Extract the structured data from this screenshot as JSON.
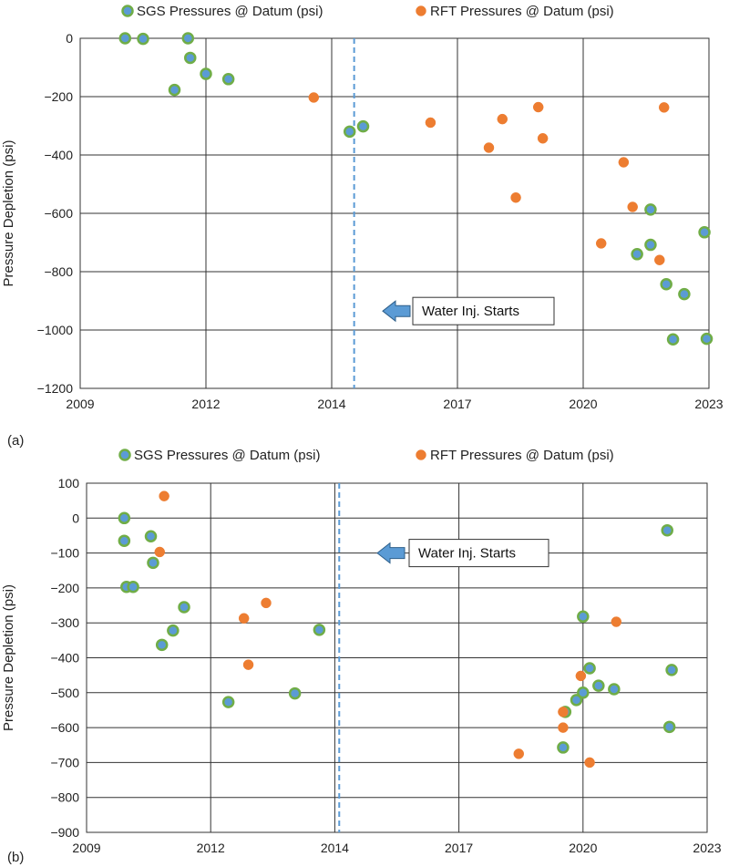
{
  "colors": {
    "sgs_fill": "#5b9bd5",
    "sgs_edge": "#70ad47",
    "rft_fill": "#ed7d31",
    "grid": "#333333",
    "marker_line": "#5b9bd5",
    "arrow_fill": "#5b9bd5",
    "arrow_edge": "#2e5f8a"
  },
  "chart_data": [
    {
      "panel": "(a)",
      "type": "scatter",
      "ylabel": "Pressure Depletion (psi)",
      "xlabel": "",
      "x_ticks": [
        "2009",
        "2012",
        "2014",
        "2017",
        "2020",
        "2023"
      ],
      "xlim": [
        2009,
        2023
      ],
      "ylim": [
        -1200,
        0
      ],
      "y_ticks": [
        0,
        -200,
        -400,
        -600,
        -800,
        -1000,
        -1200
      ],
      "y_tick_labels": [
        "0",
        "−200",
        "−400",
        "−600",
        "−800",
        "−1000",
        "−1200"
      ],
      "grid": true,
      "legend": "top",
      "vline_x": 2015.1,
      "annotation": {
        "text": "Water Inj. Starts",
        "y": -935
      },
      "series": [
        {
          "name": "SGS Pressures @ Datum (psi)",
          "marker": "sgs",
          "points": [
            [
              2010.0,
              0
            ],
            [
              2010.4,
              -2
            ],
            [
              2011.4,
              0
            ],
            [
              2011.45,
              -67
            ],
            [
              2011.1,
              -177
            ],
            [
              2011.8,
              -122
            ],
            [
              2012.3,
              -140
            ],
            [
              2015.0,
              -320
            ],
            [
              2015.3,
              -302
            ],
            [
              2021.7,
              -587
            ],
            [
              2021.4,
              -740
            ],
            [
              2021.7,
              -708
            ],
            [
              2022.05,
              -843
            ],
            [
              2022.45,
              -877
            ],
            [
              2022.2,
              -1032
            ],
            [
              2022.9,
              -665
            ],
            [
              2022.95,
              -1030
            ]
          ]
        },
        {
          "name": "RFT Pressures @ Datum (psi)",
          "marker": "rft",
          "points": [
            [
              2014.2,
              -203
            ],
            [
              2016.8,
              -289
            ],
            [
              2018.1,
              -375
            ],
            [
              2018.4,
              -277
            ],
            [
              2019.2,
              -236
            ],
            [
              2019.3,
              -343
            ],
            [
              2018.7,
              -546
            ],
            [
              2021.1,
              -425
            ],
            [
              2021.3,
              -578
            ],
            [
              2022.0,
              -237
            ],
            [
              2020.6,
              -703
            ],
            [
              2021.9,
              -760
            ]
          ]
        }
      ]
    },
    {
      "panel": "(b)",
      "type": "scatter",
      "ylabel": "Pressure Depletion (psi)",
      "xlabel": "",
      "x_ticks": [
        "2009",
        "2012",
        "2014",
        "2017",
        "2020",
        "2023"
      ],
      "xlim": [
        2009,
        2023
      ],
      "ylim": [
        -900,
        100
      ],
      "y_ticks": [
        100,
        0,
        -100,
        -200,
        -300,
        -400,
        -500,
        -600,
        -700,
        -800,
        -900
      ],
      "y_tick_labels": [
        "100",
        "0",
        "−100",
        "−200",
        "−300",
        "−400",
        "−500",
        "−600",
        "−700",
        "−800",
        "−900"
      ],
      "grid": true,
      "legend": "top",
      "vline_x": 2014.7,
      "annotation": {
        "text": "Water Inj. Starts",
        "y": -100
      },
      "series": [
        {
          "name": "SGS Pressures @ Datum (psi)",
          "marker": "sgs",
          "points": [
            [
              2009.85,
              0
            ],
            [
              2009.85,
              -65
            ],
            [
              2009.9,
              -197
            ],
            [
              2010.05,
              -197
            ],
            [
              2010.45,
              -52
            ],
            [
              2010.5,
              -128
            ],
            [
              2011.2,
              -255
            ],
            [
              2010.95,
              -322
            ],
            [
              2010.7,
              -363
            ],
            [
              2012.2,
              -527
            ],
            [
              2013.7,
              -502
            ],
            [
              2014.25,
              -320
            ],
            [
              2020.2,
              -282
            ],
            [
              2019.8,
              -555
            ],
            [
              2019.75,
              -657
            ],
            [
              2020.05,
              -521
            ],
            [
              2020.2,
              -500
            ],
            [
              2020.35,
              -430
            ],
            [
              2020.55,
              -480
            ],
            [
              2020.9,
              -490
            ],
            [
              2022.1,
              -35
            ],
            [
              2022.2,
              -435
            ],
            [
              2022.15,
              -598
            ]
          ]
        },
        {
          "name": "RFT Pressures @ Datum (psi)",
          "marker": "rft",
          "points": [
            [
              2010.75,
              63
            ],
            [
              2010.65,
              -97
            ],
            [
              2012.55,
              -287
            ],
            [
              2012.65,
              -420
            ],
            [
              2013.05,
              -243
            ],
            [
              2018.75,
              -675
            ],
            [
              2019.75,
              -555
            ],
            [
              2019.75,
              -600
            ],
            [
              2020.15,
              -452
            ],
            [
              2020.95,
              -297
            ],
            [
              2020.35,
              -700
            ]
          ]
        }
      ]
    }
  ]
}
